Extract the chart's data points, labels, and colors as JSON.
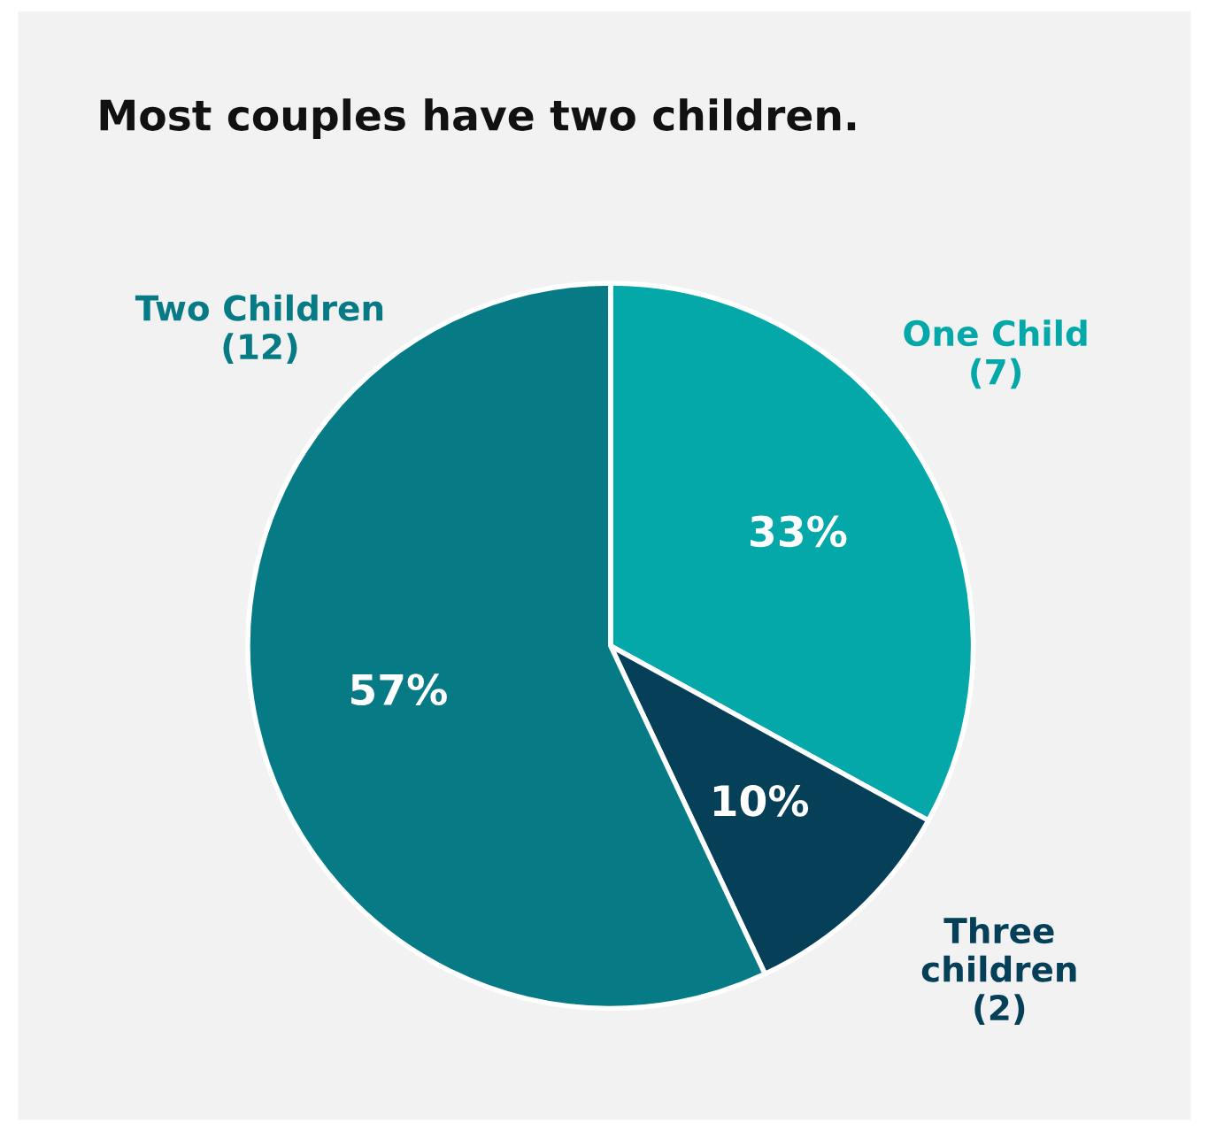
{
  "chart_data": {
    "type": "pie",
    "title": "Most couples have two children.",
    "categories": [
      "One Child\n(7)",
      "Three\nchildren\n(2)",
      "Two Children\n(12)"
    ],
    "values": [
      33,
      10,
      57
    ],
    "colors": [
      "#05a8a8",
      "#063f58",
      "#067b86"
    ],
    "value_labels": [
      "33%",
      "10%",
      "57%"
    ],
    "legend": false
  }
}
